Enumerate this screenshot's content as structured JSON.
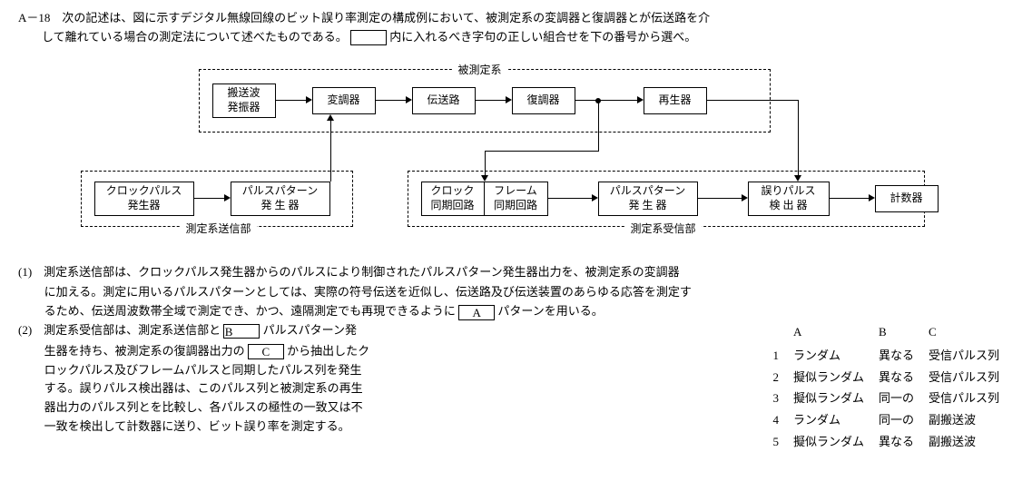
{
  "question": {
    "number": "A－18",
    "line1": "次の記述は、図に示すデジタル無線回線のビット誤り率測定の構成例において、被測定系の変調器と復調器とが伝送路を介",
    "line2": "して離れている場合の測定法について述べたものである。",
    "line2b": "内に入れるべき字句の正しい組合せを下の番号から選べ。"
  },
  "diagram": {
    "group_top_label": "被測定系",
    "group_bl_label": "測定系送信部",
    "group_br_label": "測定系受信部",
    "nodes": {
      "carrier_osc": "搬送波\n発振器",
      "modulator": "変調器",
      "transm": "伝送路",
      "demod": "復調器",
      "regen": "再生器",
      "clk_gen": "クロックパルス\n発生器",
      "pat_gen1": "パルスパターン\n発 生 器",
      "clk_sync": "クロック\n同期回路",
      "frame_sync": "フレーム\n同期回路",
      "pat_gen2": "パルスパターン\n発 生 器",
      "err_det": "誤りパルス\n検 出 器",
      "counter": "計数器"
    }
  },
  "paras": {
    "p1_a": "(1)　測定系送信部は、クロックパルス発生器からのパルスにより制御されたパルスパターン発生器出力を、被測定系の変調器",
    "p1_b": "に加える。測定に用いるパルスパターンとしては、実際の符号伝送を近似し、伝送路及び伝送装置のあらゆる応答を測定す",
    "p1_c": "るため、伝送周波数帯全域で測定でき、かつ、遠隔測定でも再現できるように",
    "p1_c_after": "パターンを用いる。",
    "p2_a": "(2)　測定系受信部は、測定系送信部と",
    "p2_a_after": "パルスパターン発",
    "p2_b": "生器を持ち、被測定系の復調器出力の",
    "p2_b_after": "から抽出したク",
    "p2_c": "ロックパルス及びフレームパルスと同期したパルス列を発生",
    "p2_d": "する。誤りパルス検出器は、このパルス列と被測定系の再生",
    "p2_e": "器出力のパルス列とを比較し、各パルスの極性の一致又は不",
    "p2_f": "一致を検出して計数器に送り、ビット誤り率を測定する。",
    "blank_A": "A",
    "blank_B": "B",
    "blank_C": "C"
  },
  "choices": {
    "headers": [
      "",
      "A",
      "B",
      "C"
    ],
    "rows": [
      [
        "1",
        "ランダム",
        "異なる",
        "受信パルス列"
      ],
      [
        "2",
        "擬似ランダム",
        "異なる",
        "受信パルス列"
      ],
      [
        "3",
        "擬似ランダム",
        "同一の",
        "受信パルス列"
      ],
      [
        "4",
        "ランダム",
        "同一の",
        "副搬送波"
      ],
      [
        "5",
        "擬似ランダム",
        "異なる",
        "副搬送波"
      ]
    ]
  }
}
